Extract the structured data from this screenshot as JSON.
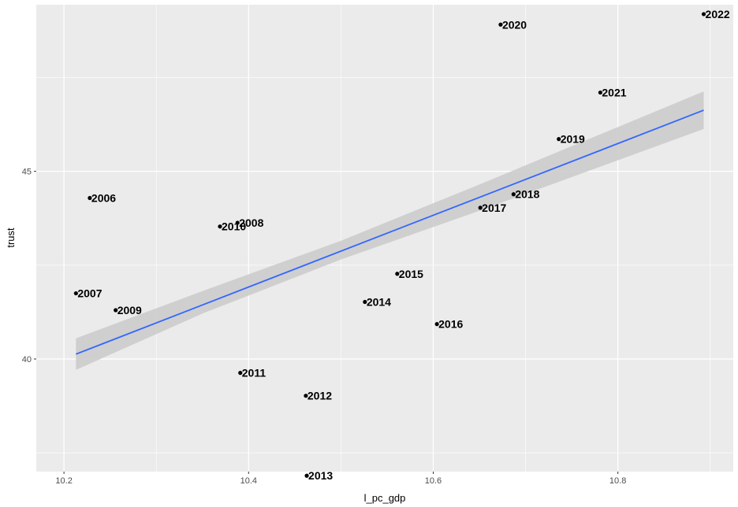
{
  "chart_data": {
    "type": "scatter",
    "xlabel": "l_pc_gdp",
    "ylabel": "trust",
    "xlim": [
      10.17,
      10.925
    ],
    "ylim": [
      37.0,
      49.44
    ],
    "x_ticks": [
      {
        "value": 10.2,
        "label": "10.2"
      },
      {
        "value": 10.4,
        "label": "10.4"
      },
      {
        "value": 10.6,
        "label": "10.6"
      },
      {
        "value": 10.8,
        "label": "10.8"
      }
    ],
    "y_ticks": [
      {
        "value": 40,
        "label": "40"
      },
      {
        "value": 45,
        "label": "45"
      }
    ],
    "grid": true,
    "colors": {
      "panel": "#EBEBEB",
      "grid": "#FFFFFF",
      "point": "#000000",
      "fit_line": "#3366FF",
      "confidence_band": "#CCCCCC"
    },
    "points": [
      {
        "label": "2006",
        "x": 10.228,
        "y": 44.29
      },
      {
        "label": "2007",
        "x": 10.213,
        "y": 41.75
      },
      {
        "label": "2008",
        "x": 10.388,
        "y": 43.63
      },
      {
        "label": "2009",
        "x": 10.256,
        "y": 41.3
      },
      {
        "label": "2010",
        "x": 10.369,
        "y": 43.53
      },
      {
        "label": "2011",
        "x": 10.391,
        "y": 39.63
      },
      {
        "label": "2012",
        "x": 10.462,
        "y": 39.02
      },
      {
        "label": "2013",
        "x": 10.463,
        "y": 36.89
      },
      {
        "label": "2014",
        "x": 10.526,
        "y": 41.52
      },
      {
        "label": "2015",
        "x": 10.561,
        "y": 42.27
      },
      {
        "label": "2016",
        "x": 10.604,
        "y": 40.93
      },
      {
        "label": "2017",
        "x": 10.651,
        "y": 44.03
      },
      {
        "label": "2018",
        "x": 10.687,
        "y": 44.39
      },
      {
        "label": "2019",
        "x": 10.736,
        "y": 45.86
      },
      {
        "label": "2020",
        "x": 10.673,
        "y": 48.91
      },
      {
        "label": "2021",
        "x": 10.781,
        "y": 47.1
      },
      {
        "label": "2022",
        "x": 10.893,
        "y": 49.19
      }
    ],
    "fit_line": {
      "x": [
        10.213,
        10.893
      ],
      "y": [
        40.13,
        46.63
      ]
    },
    "confidence_band": {
      "x": [
        10.213,
        10.35,
        10.5,
        10.65,
        10.893
      ],
      "lower": [
        39.71,
        41.21,
        42.65,
        43.95,
        46.13
      ],
      "upper": [
        40.55,
        41.81,
        43.15,
        44.65,
        47.13
      ]
    }
  }
}
